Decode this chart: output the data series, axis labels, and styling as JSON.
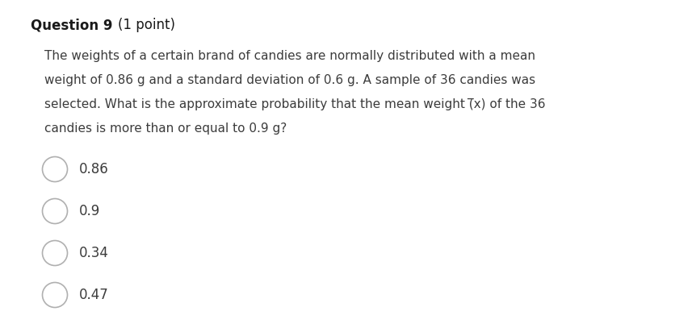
{
  "title_bold": "Question 9",
  "title_normal": " (1 point)",
  "question_lines": [
    "The weights of a certain brand of candies are normally distributed with a mean",
    "weight of 0.86 g and a standard deviation of 0.6 g. A sample of 36 candies was",
    "selected. What is the approximate probability that the mean weight (̅x) of the 36",
    "candies is more than or equal to 0.9 g?"
  ],
  "options": [
    "0.86",
    "0.9",
    "0.34",
    "0.47"
  ],
  "background_color": "#ffffff",
  "text_color": "#3c3c3c",
  "title_color": "#1a1a1a",
  "font_size_title": 12,
  "font_size_question": 11,
  "font_size_options": 12,
  "circle_color": "#b0b0b0"
}
